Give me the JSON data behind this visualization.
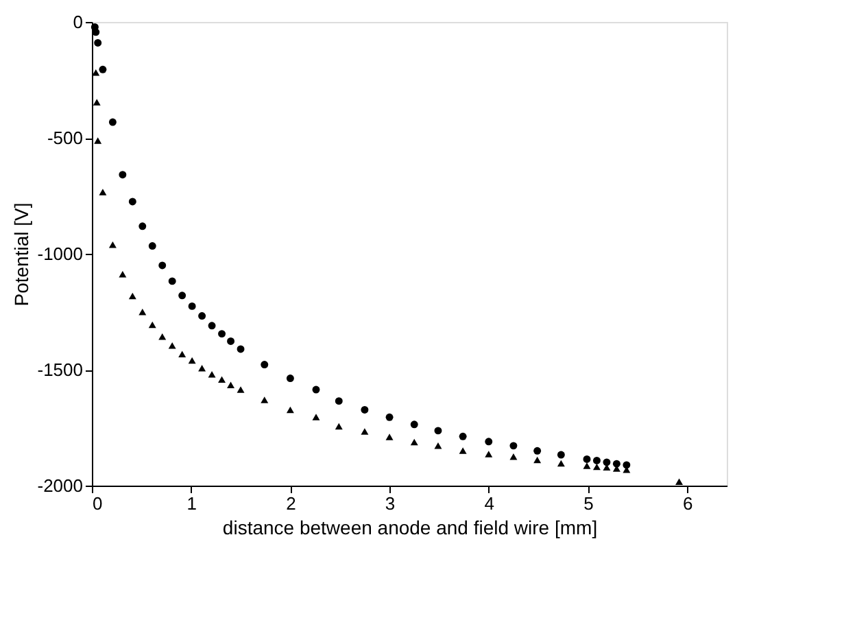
{
  "chart_data": {
    "type": "scatter",
    "xlabel": "distance between anode and field wire [mm]",
    "ylabel": "Potential [V]",
    "xlim": [
      0,
      6.4
    ],
    "xticks": [
      0,
      1,
      2,
      3,
      4,
      5,
      6
    ],
    "ylim": [
      -2000,
      0
    ],
    "yticks": [
      -2000,
      -1500,
      -1000,
      -500,
      0
    ],
    "grid": false,
    "series": [
      {
        "color": "#000000",
        "marker": "circle",
        "x": [
          0.03,
          0.04,
          0.06,
          0.11,
          0.21,
          0.31,
          0.41,
          0.51,
          0.61,
          0.71,
          0.81,
          0.91,
          1.01,
          1.11,
          1.21,
          1.31,
          1.4,
          1.5,
          1.74,
          2.0,
          2.26,
          2.49,
          2.75,
          3.0,
          3.25,
          3.49,
          3.74,
          4.0,
          4.25,
          4.49,
          4.73,
          4.99,
          5.09,
          5.19,
          5.29,
          5.39
        ],
        "values": [
          -22,
          -44,
          -90,
          -205,
          -432,
          -659,
          -775,
          -881,
          -966,
          -1050,
          -1118,
          -1180,
          -1226,
          -1268,
          -1310,
          -1345,
          -1377,
          -1411,
          -1478,
          -1537,
          -1586,
          -1635,
          -1673,
          -1705,
          -1736,
          -1763,
          -1788,
          -1810,
          -1828,
          -1850,
          -1867,
          -1886,
          -1892,
          -1899,
          -1906,
          -1911
        ]
      },
      {
        "color": "#000000",
        "marker": "triangle",
        "x": [
          0.04,
          0.05,
          0.06,
          0.11,
          0.21,
          0.31,
          0.41,
          0.51,
          0.61,
          0.71,
          0.81,
          0.91,
          1.01,
          1.11,
          1.21,
          1.31,
          1.4,
          1.5,
          1.74,
          2.0,
          2.26,
          2.49,
          2.75,
          3.0,
          3.25,
          3.49,
          3.74,
          4.0,
          4.25,
          4.49,
          4.73,
          4.99,
          5.09,
          5.19,
          5.29,
          5.39,
          5.92
        ],
        "values": [
          -218,
          -346,
          -512,
          -734,
          -961,
          -1088,
          -1182,
          -1251,
          -1306,
          -1357,
          -1396,
          -1433,
          -1460,
          -1493,
          -1520,
          -1542,
          -1566,
          -1586,
          -1630,
          -1673,
          -1704,
          -1744,
          -1766,
          -1790,
          -1812,
          -1828,
          -1849,
          -1864,
          -1875,
          -1889,
          -1904,
          -1914,
          -1919,
          -1921,
          -1926,
          -1931,
          -1983
        ]
      }
    ]
  }
}
